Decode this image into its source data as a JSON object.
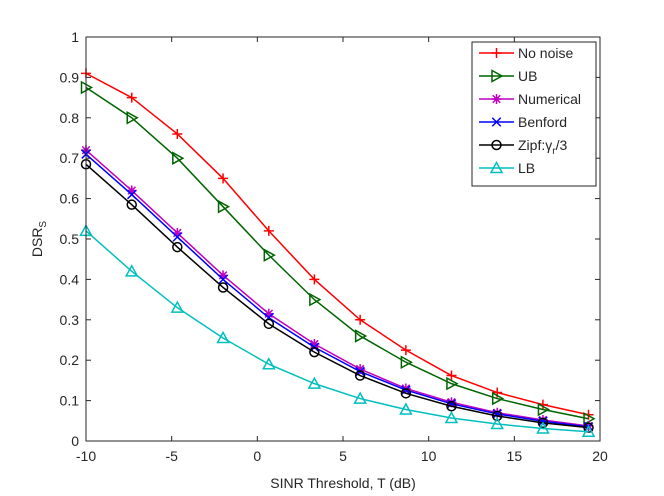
{
  "chart_data": {
    "type": "line",
    "title": "",
    "xlabel": "SINR Threshold, T (dB)",
    "ylabel_main": "DSR",
    "ylabel_sub": "S",
    "xlim": [
      -10,
      20
    ],
    "ylim": [
      0,
      1
    ],
    "xticks": [
      -10,
      -5,
      0,
      5,
      10,
      15,
      20
    ],
    "yticks": [
      0,
      0.1,
      0.2,
      0.3,
      0.4,
      0.5,
      0.6,
      0.7,
      0.8,
      0.9,
      1
    ],
    "xtick_labels": [
      "-10",
      "-5",
      "0",
      "5",
      "10",
      "15",
      "20"
    ],
    "ytick_labels": [
      "0",
      "0.1",
      "0.2",
      "0.3",
      "0.4",
      "0.5",
      "0.6",
      "0.7",
      "0.8",
      "0.9",
      "1"
    ],
    "grid": false,
    "legend_position": "top-right",
    "x": [
      -10,
      -7.33,
      -4.67,
      -2,
      0.67,
      3.33,
      6,
      8.67,
      11.33,
      14,
      16.67,
      19.33
    ],
    "series": [
      {
        "name": "No noise",
        "marker": "plus",
        "color": "#ff0000",
        "values": [
          0.91,
          0.85,
          0.76,
          0.65,
          0.52,
          0.4,
          0.3,
          0.225,
          0.162,
          0.12,
          0.09,
          0.065
        ]
      },
      {
        "name": "UB",
        "marker": "triangle-right",
        "color": "#006400",
        "values": [
          0.875,
          0.8,
          0.7,
          0.58,
          0.46,
          0.35,
          0.26,
          0.195,
          0.142,
          0.105,
          0.078,
          0.055
        ]
      },
      {
        "name": "Numerical",
        "marker": "star",
        "color": "#bf00bf",
        "values": [
          0.72,
          0.62,
          0.515,
          0.41,
          0.315,
          0.24,
          0.178,
          0.13,
          0.096,
          0.07,
          0.052,
          0.037
        ]
      },
      {
        "name": "Benford",
        "marker": "x",
        "color": "#0000ff",
        "values": [
          0.71,
          0.61,
          0.505,
          0.4,
          0.305,
          0.232,
          0.172,
          0.126,
          0.092,
          0.067,
          0.049,
          0.035
        ]
      },
      {
        "name_prefix": "Zipf:",
        "name_greek": "γ",
        "name_sub": "r",
        "name_suffix": "/3",
        "marker": "circle",
        "color": "#000000",
        "values": [
          0.685,
          0.585,
          0.48,
          0.38,
          0.29,
          0.22,
          0.162,
          0.118,
          0.086,
          0.062,
          0.045,
          0.033
        ]
      },
      {
        "name": "LB",
        "marker": "triangle-up",
        "color": "#00bfbf",
        "values": [
          0.52,
          0.42,
          0.33,
          0.255,
          0.19,
          0.142,
          0.105,
          0.078,
          0.057,
          0.042,
          0.031,
          0.023
        ]
      }
    ]
  }
}
